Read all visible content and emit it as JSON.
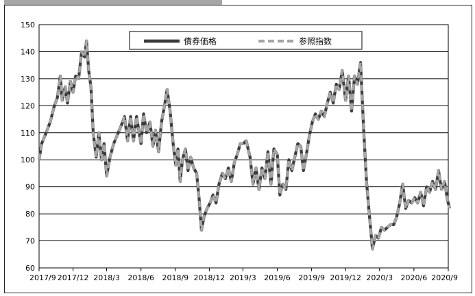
{
  "chart_data": {
    "type": "line",
    "title": "",
    "xlabel": "",
    "ylabel": "",
    "ylim": [
      60,
      150
    ],
    "yticks": [
      60,
      70,
      80,
      90,
      100,
      110,
      120,
      130,
      140,
      150
    ],
    "xlim": [
      "2017-09",
      "2020-09"
    ],
    "x_tick_labels": [
      "2017/9",
      "2017/12",
      "2018/3",
      "2018/6",
      "2018/9",
      "2018/12",
      "2019/3",
      "2019/6",
      "2019/9",
      "2019/12",
      "2020/3",
      "2020/6",
      "2020/9"
    ],
    "grid": "horizontal",
    "legend_position": "top-center",
    "series": [
      {
        "name": "債券価格",
        "color": "#3c3c3c",
        "style": "solid",
        "points": [
          [
            "2017-09-01",
            100
          ],
          [
            "2017-09-08",
            106
          ],
          [
            "2017-09-20",
            110
          ],
          [
            "2017-10-01",
            114
          ],
          [
            "2017-10-12",
            120
          ],
          [
            "2017-10-20",
            123
          ],
          [
            "2017-10-28",
            131
          ],
          [
            "2017-11-02",
            122
          ],
          [
            "2017-11-10",
            127
          ],
          [
            "2017-11-16",
            121
          ],
          [
            "2017-11-24",
            129
          ],
          [
            "2017-12-01",
            125
          ],
          [
            "2017-12-08",
            131
          ],
          [
            "2017-12-16",
            130
          ],
          [
            "2017-12-24",
            140
          ],
          [
            "2018-01-01",
            138
          ],
          [
            "2018-01-06",
            144
          ],
          [
            "2018-01-12",
            133
          ],
          [
            "2018-01-18",
            127
          ],
          [
            "2018-01-24",
            110
          ],
          [
            "2018-02-01",
            101
          ],
          [
            "2018-02-08",
            110
          ],
          [
            "2018-02-15",
            100
          ],
          [
            "2018-02-22",
            106
          ],
          [
            "2018-03-01",
            94
          ],
          [
            "2018-03-10",
            101
          ],
          [
            "2018-03-20",
            106
          ],
          [
            "2018-04-01",
            110
          ],
          [
            "2018-04-10",
            113
          ],
          [
            "2018-04-18",
            116
          ],
          [
            "2018-04-26",
            107
          ],
          [
            "2018-05-04",
            116
          ],
          [
            "2018-05-12",
            107
          ],
          [
            "2018-05-20",
            116
          ],
          [
            "2018-06-01",
            106
          ],
          [
            "2018-06-08",
            117
          ],
          [
            "2018-06-16",
            110
          ],
          [
            "2018-06-25",
            114
          ],
          [
            "2018-07-03",
            105
          ],
          [
            "2018-07-10",
            111
          ],
          [
            "2018-07-18",
            103
          ],
          [
            "2018-07-26",
            114
          ],
          [
            "2018-08-03",
            120
          ],
          [
            "2018-08-10",
            126
          ],
          [
            "2018-08-18",
            118
          ],
          [
            "2018-08-26",
            106
          ],
          [
            "2018-09-02",
            98
          ],
          [
            "2018-09-08",
            104
          ],
          [
            "2018-09-14",
            92
          ],
          [
            "2018-09-20",
            100
          ],
          [
            "2018-09-28",
            104
          ],
          [
            "2018-10-05",
            96
          ],
          [
            "2018-10-12",
            101
          ],
          [
            "2018-10-20",
            97
          ],
          [
            "2018-10-28",
            95
          ],
          [
            "2018-11-04",
            85
          ],
          [
            "2018-11-10",
            74
          ],
          [
            "2018-11-17",
            79
          ],
          [
            "2018-11-25",
            82
          ],
          [
            "2018-12-03",
            84
          ],
          [
            "2018-12-11",
            87
          ],
          [
            "2018-12-19",
            84
          ],
          [
            "2018-12-27",
            91
          ],
          [
            "2019-01-05",
            95
          ],
          [
            "2019-01-13",
            93
          ],
          [
            "2019-01-21",
            97
          ],
          [
            "2019-01-29",
            92
          ],
          [
            "2019-02-06",
            99
          ],
          [
            "2019-02-14",
            102
          ],
          [
            "2019-02-22",
            106
          ],
          [
            "2019-03-02",
            106
          ],
          [
            "2019-03-10",
            107
          ],
          [
            "2019-03-20",
            101
          ],
          [
            "2019-03-28",
            91
          ],
          [
            "2019-04-05",
            97
          ],
          [
            "2019-04-13",
            89
          ],
          [
            "2019-04-21",
            97
          ],
          [
            "2019-04-29",
            93
          ],
          [
            "2019-05-07",
            103
          ],
          [
            "2019-05-15",
            91
          ],
          [
            "2019-05-23",
            104
          ],
          [
            "2019-06-01",
            102
          ],
          [
            "2019-06-08",
            87
          ],
          [
            "2019-06-16",
            91
          ],
          [
            "2019-06-24",
            89
          ],
          [
            "2019-07-02",
            100
          ],
          [
            "2019-07-10",
            96
          ],
          [
            "2019-07-18",
            101
          ],
          [
            "2019-07-26",
            106
          ],
          [
            "2019-08-03",
            105
          ],
          [
            "2019-08-10",
            96
          ],
          [
            "2019-08-18",
            102
          ],
          [
            "2019-08-26",
            109
          ],
          [
            "2019-09-03",
            114
          ],
          [
            "2019-09-11",
            117
          ],
          [
            "2019-09-19",
            115
          ],
          [
            "2019-09-27",
            118
          ],
          [
            "2019-10-05",
            116
          ],
          [
            "2019-10-13",
            121
          ],
          [
            "2019-10-21",
            125
          ],
          [
            "2019-10-29",
            121
          ],
          [
            "2019-11-06",
            128
          ],
          [
            "2019-11-14",
            126
          ],
          [
            "2019-11-22",
            133
          ],
          [
            "2019-12-01",
            122
          ],
          [
            "2019-12-09",
            131
          ],
          [
            "2019-12-17",
            118
          ],
          [
            "2019-12-25",
            131
          ],
          [
            "2020-01-02",
            128
          ],
          [
            "2020-01-10",
            136
          ],
          [
            "2020-01-18",
            112
          ],
          [
            "2020-01-26",
            92
          ],
          [
            "2020-02-03",
            79
          ],
          [
            "2020-02-11",
            67
          ],
          [
            "2020-02-19",
            72
          ],
          [
            "2020-02-27",
            71
          ],
          [
            "2020-03-06",
            75
          ],
          [
            "2020-03-14",
            74
          ],
          [
            "2020-03-22",
            75
          ],
          [
            "2020-03-30",
            76
          ],
          [
            "2020-04-08",
            76
          ],
          [
            "2020-04-16",
            79
          ],
          [
            "2020-04-24",
            84
          ],
          [
            "2020-05-02",
            91
          ],
          [
            "2020-05-10",
            82
          ],
          [
            "2020-05-18",
            85
          ],
          [
            "2020-05-26",
            84
          ],
          [
            "2020-06-03",
            86
          ],
          [
            "2020-06-11",
            84
          ],
          [
            "2020-06-19",
            88
          ],
          [
            "2020-06-27",
            83
          ],
          [
            "2020-07-05",
            90
          ],
          [
            "2020-07-13",
            88
          ],
          [
            "2020-07-21",
            92
          ],
          [
            "2020-07-29",
            89
          ],
          [
            "2020-08-06",
            96
          ],
          [
            "2020-08-14",
            89
          ],
          [
            "2020-08-22",
            92
          ],
          [
            "2020-08-30",
            85
          ],
          [
            "2020-09-05",
            82
          ]
        ]
      },
      {
        "name": "参照指数",
        "color": "#a6a6a6",
        "style": "dashed",
        "points": [
          [
            "2017-09-01",
            100
          ],
          [
            "2017-09-08",
            106
          ],
          [
            "2017-09-20",
            110
          ],
          [
            "2017-10-01",
            114
          ],
          [
            "2017-10-12",
            120
          ],
          [
            "2017-10-20",
            123
          ],
          [
            "2017-10-28",
            131
          ],
          [
            "2017-11-02",
            122
          ],
          [
            "2017-11-10",
            127
          ],
          [
            "2017-11-16",
            121
          ],
          [
            "2017-11-24",
            129
          ],
          [
            "2017-12-01",
            125
          ],
          [
            "2017-12-08",
            131
          ],
          [
            "2017-12-16",
            130
          ],
          [
            "2017-12-24",
            140
          ],
          [
            "2018-01-01",
            138
          ],
          [
            "2018-01-06",
            144
          ],
          [
            "2018-01-12",
            133
          ],
          [
            "2018-01-18",
            127
          ],
          [
            "2018-01-24",
            110
          ],
          [
            "2018-02-01",
            101
          ],
          [
            "2018-02-08",
            110
          ],
          [
            "2018-02-15",
            100
          ],
          [
            "2018-02-22",
            106
          ],
          [
            "2018-03-01",
            94
          ],
          [
            "2018-03-10",
            101
          ],
          [
            "2018-03-20",
            106
          ],
          [
            "2018-04-01",
            110
          ],
          [
            "2018-04-10",
            113
          ],
          [
            "2018-04-18",
            116
          ],
          [
            "2018-04-26",
            107
          ],
          [
            "2018-05-04",
            116
          ],
          [
            "2018-05-12",
            107
          ],
          [
            "2018-05-20",
            116
          ],
          [
            "2018-06-01",
            106
          ],
          [
            "2018-06-08",
            117
          ],
          [
            "2018-06-16",
            110
          ],
          [
            "2018-06-25",
            114
          ],
          [
            "2018-07-03",
            105
          ],
          [
            "2018-07-10",
            111
          ],
          [
            "2018-07-18",
            103
          ],
          [
            "2018-07-26",
            114
          ],
          [
            "2018-08-03",
            120
          ],
          [
            "2018-08-10",
            126
          ],
          [
            "2018-08-18",
            118
          ],
          [
            "2018-08-26",
            106
          ],
          [
            "2018-09-02",
            98
          ],
          [
            "2018-09-08",
            104
          ],
          [
            "2018-09-14",
            92
          ],
          [
            "2018-09-20",
            100
          ],
          [
            "2018-09-28",
            104
          ],
          [
            "2018-10-05",
            96
          ],
          [
            "2018-10-12",
            101
          ],
          [
            "2018-10-20",
            97
          ],
          [
            "2018-10-28",
            95
          ],
          [
            "2018-11-04",
            85
          ],
          [
            "2018-11-10",
            74
          ],
          [
            "2018-11-17",
            79
          ],
          [
            "2018-11-25",
            82
          ],
          [
            "2018-12-03",
            84
          ],
          [
            "2018-12-11",
            87
          ],
          [
            "2018-12-19",
            84
          ],
          [
            "2018-12-27",
            91
          ],
          [
            "2019-01-05",
            95
          ],
          [
            "2019-01-13",
            93
          ],
          [
            "2019-01-21",
            97
          ],
          [
            "2019-01-29",
            92
          ],
          [
            "2019-02-06",
            99
          ],
          [
            "2019-02-14",
            102
          ],
          [
            "2019-02-22",
            106
          ],
          [
            "2019-03-02",
            106
          ],
          [
            "2019-03-10",
            107
          ],
          [
            "2019-03-20",
            101
          ],
          [
            "2019-03-28",
            91
          ],
          [
            "2019-04-05",
            97
          ],
          [
            "2019-04-13",
            89
          ],
          [
            "2019-04-21",
            97
          ],
          [
            "2019-04-29",
            93
          ],
          [
            "2019-05-07",
            103
          ],
          [
            "2019-05-15",
            91
          ],
          [
            "2019-05-23",
            104
          ],
          [
            "2019-06-01",
            102
          ],
          [
            "2019-06-08",
            87
          ],
          [
            "2019-06-16",
            91
          ],
          [
            "2019-06-24",
            89
          ],
          [
            "2019-07-02",
            100
          ],
          [
            "2019-07-10",
            96
          ],
          [
            "2019-07-18",
            101
          ],
          [
            "2019-07-26",
            106
          ],
          [
            "2019-08-03",
            105
          ],
          [
            "2019-08-10",
            96
          ],
          [
            "2019-08-18",
            102
          ],
          [
            "2019-08-26",
            109
          ],
          [
            "2019-09-03",
            114
          ],
          [
            "2019-09-11",
            117
          ],
          [
            "2019-09-19",
            115
          ],
          [
            "2019-09-27",
            118
          ],
          [
            "2019-10-05",
            116
          ],
          [
            "2019-10-13",
            121
          ],
          [
            "2019-10-21",
            125
          ],
          [
            "2019-10-29",
            121
          ],
          [
            "2019-11-06",
            128
          ],
          [
            "2019-11-14",
            126
          ],
          [
            "2019-11-22",
            133
          ],
          [
            "2019-12-01",
            122
          ],
          [
            "2019-12-09",
            131
          ],
          [
            "2019-12-17",
            118
          ],
          [
            "2019-12-25",
            131
          ],
          [
            "2020-01-02",
            128
          ],
          [
            "2020-01-10",
            136
          ],
          [
            "2020-01-18",
            112
          ],
          [
            "2020-01-26",
            92
          ],
          [
            "2020-02-03",
            79
          ],
          [
            "2020-02-11",
            67
          ],
          [
            "2020-02-19",
            72
          ],
          [
            "2020-02-27",
            71
          ],
          [
            "2020-03-06",
            75
          ],
          [
            "2020-03-14",
            74
          ],
          [
            "2020-03-22",
            75
          ],
          [
            "2020-03-30",
            76
          ],
          [
            "2020-04-08",
            76
          ],
          [
            "2020-04-16",
            79
          ],
          [
            "2020-04-24",
            84
          ],
          [
            "2020-05-02",
            91
          ],
          [
            "2020-05-10",
            82
          ],
          [
            "2020-05-18",
            85
          ],
          [
            "2020-05-26",
            84
          ],
          [
            "2020-06-03",
            86
          ],
          [
            "2020-06-11",
            84
          ],
          [
            "2020-06-19",
            88
          ],
          [
            "2020-06-27",
            83
          ],
          [
            "2020-07-05",
            90
          ],
          [
            "2020-07-13",
            88
          ],
          [
            "2020-07-21",
            92
          ],
          [
            "2020-07-29",
            89
          ],
          [
            "2020-08-06",
            96
          ],
          [
            "2020-08-14",
            89
          ],
          [
            "2020-08-22",
            92
          ],
          [
            "2020-08-30",
            85
          ],
          [
            "2020-09-05",
            82
          ]
        ]
      }
    ]
  }
}
